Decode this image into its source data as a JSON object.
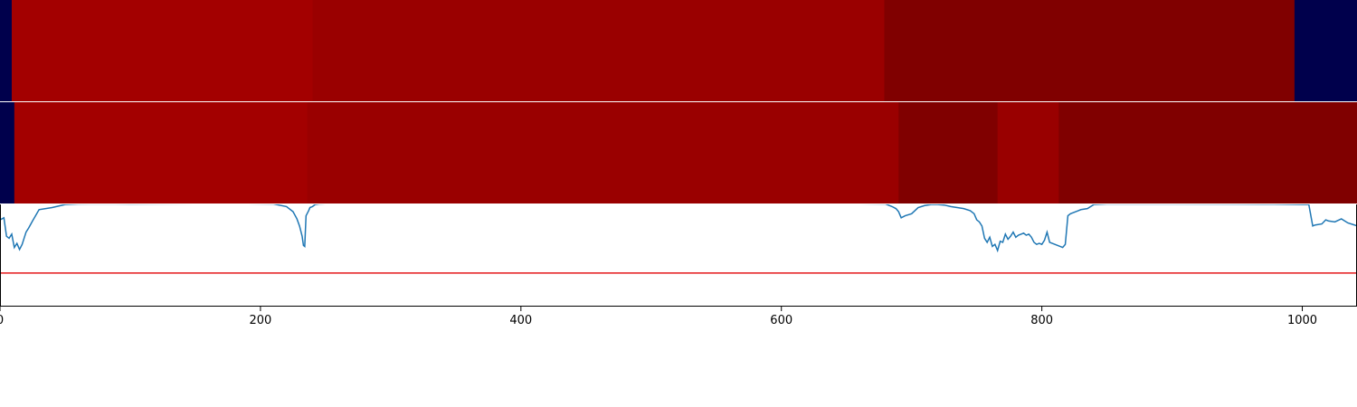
{
  "chart_data": [
    {
      "type": "heatmap",
      "title": "",
      "xlim": [
        0,
        1042
      ],
      "segments": [
        {
          "start": 0,
          "end": 9,
          "color": "#00004c"
        },
        {
          "start": 9,
          "end": 240,
          "color": "#a30000"
        },
        {
          "start": 240,
          "end": 679,
          "color": "#9a0000"
        },
        {
          "start": 679,
          "end": 994,
          "color": "#800000"
        },
        {
          "start": 994,
          "end": 1042,
          "color": "#00004c"
        }
      ]
    },
    {
      "type": "heatmap",
      "title": "",
      "xlim": [
        0,
        1042
      ],
      "segments": [
        {
          "start": 0,
          "end": 11,
          "color": "#00004c"
        },
        {
          "start": 11,
          "end": 236,
          "color": "#a30000"
        },
        {
          "start": 236,
          "end": 690,
          "color": "#9a0000"
        },
        {
          "start": 690,
          "end": 766,
          "color": "#800000"
        },
        {
          "start": 766,
          "end": 813,
          "color": "#990000"
        },
        {
          "start": 813,
          "end": 1042,
          "color": "#800000"
        }
      ]
    },
    {
      "type": "line",
      "title": "",
      "xlabel": "",
      "ylabel": "",
      "xlim": [
        0,
        1042
      ],
      "ylim": [
        0,
        1
      ],
      "xticks": [
        0,
        200,
        400,
        600,
        800,
        1000
      ],
      "xtick_labels": [
        "0",
        "200",
        "400",
        "600",
        "800",
        "1000"
      ],
      "threshold": {
        "y": 0.32,
        "color": "#e41a1c"
      },
      "series": [
        {
          "color": "#1f77b4",
          "x": [
            0,
            3,
            5,
            7,
            9,
            11,
            13,
            15,
            17,
            20,
            22,
            25,
            30,
            40,
            50,
            60,
            80,
            100,
            120,
            150,
            180,
            210,
            220,
            225,
            228,
            230,
            232,
            233,
            234,
            235,
            237,
            238,
            240,
            242,
            245,
            250,
            300,
            400,
            500,
            600,
            650,
            680,
            685,
            688,
            690,
            692,
            695,
            700,
            705,
            710,
            715,
            720,
            725,
            730,
            735,
            740,
            745,
            748,
            750,
            752,
            754,
            756,
            758,
            760,
            762,
            764,
            766,
            768,
            770,
            772,
            774,
            776,
            778,
            780,
            782,
            784,
            786,
            788,
            790,
            792,
            794,
            796,
            798,
            800,
            802,
            804,
            806,
            808,
            810,
            812,
            814,
            816,
            818,
            820,
            822,
            824,
            826,
            828,
            830,
            835,
            840,
            850,
            900,
            950,
            978,
            1000,
            1005,
            1008,
            1010,
            1015,
            1018,
            1020,
            1025,
            1030,
            1035,
            1040,
            1042
          ],
          "y": [
            0.84,
            0.86,
            0.68,
            0.66,
            0.7,
            0.57,
            0.61,
            0.55,
            0.6,
            0.72,
            0.76,
            0.83,
            0.94,
            0.96,
            0.99,
            0.995,
            0.998,
            0.995,
            0.997,
            0.998,
            0.999,
            0.995,
            0.97,
            0.92,
            0.85,
            0.78,
            0.68,
            0.59,
            0.58,
            0.88,
            0.93,
            0.96,
            0.97,
            0.99,
            0.995,
            0.998,
            0.999,
            0.999,
            0.999,
            0.999,
            0.999,
            0.995,
            0.97,
            0.95,
            0.92,
            0.86,
            0.88,
            0.9,
            0.96,
            0.98,
            0.99,
            0.99,
            0.985,
            0.97,
            0.96,
            0.95,
            0.93,
            0.9,
            0.84,
            0.82,
            0.78,
            0.66,
            0.62,
            0.67,
            0.58,
            0.6,
            0.54,
            0.63,
            0.62,
            0.7,
            0.65,
            0.68,
            0.72,
            0.67,
            0.69,
            0.7,
            0.71,
            0.69,
            0.7,
            0.67,
            0.62,
            0.6,
            0.61,
            0.6,
            0.64,
            0.72,
            0.62,
            0.61,
            0.6,
            0.59,
            0.58,
            0.57,
            0.6,
            0.88,
            0.9,
            0.91,
            0.92,
            0.93,
            0.94,
            0.95,
            0.99,
            0.995,
            0.995,
            0.994,
            0.993,
            0.99,
            0.99,
            0.78,
            0.79,
            0.8,
            0.84,
            0.83,
            0.82,
            0.85,
            0.81,
            0.79,
            0.78
          ]
        }
      ]
    }
  ]
}
